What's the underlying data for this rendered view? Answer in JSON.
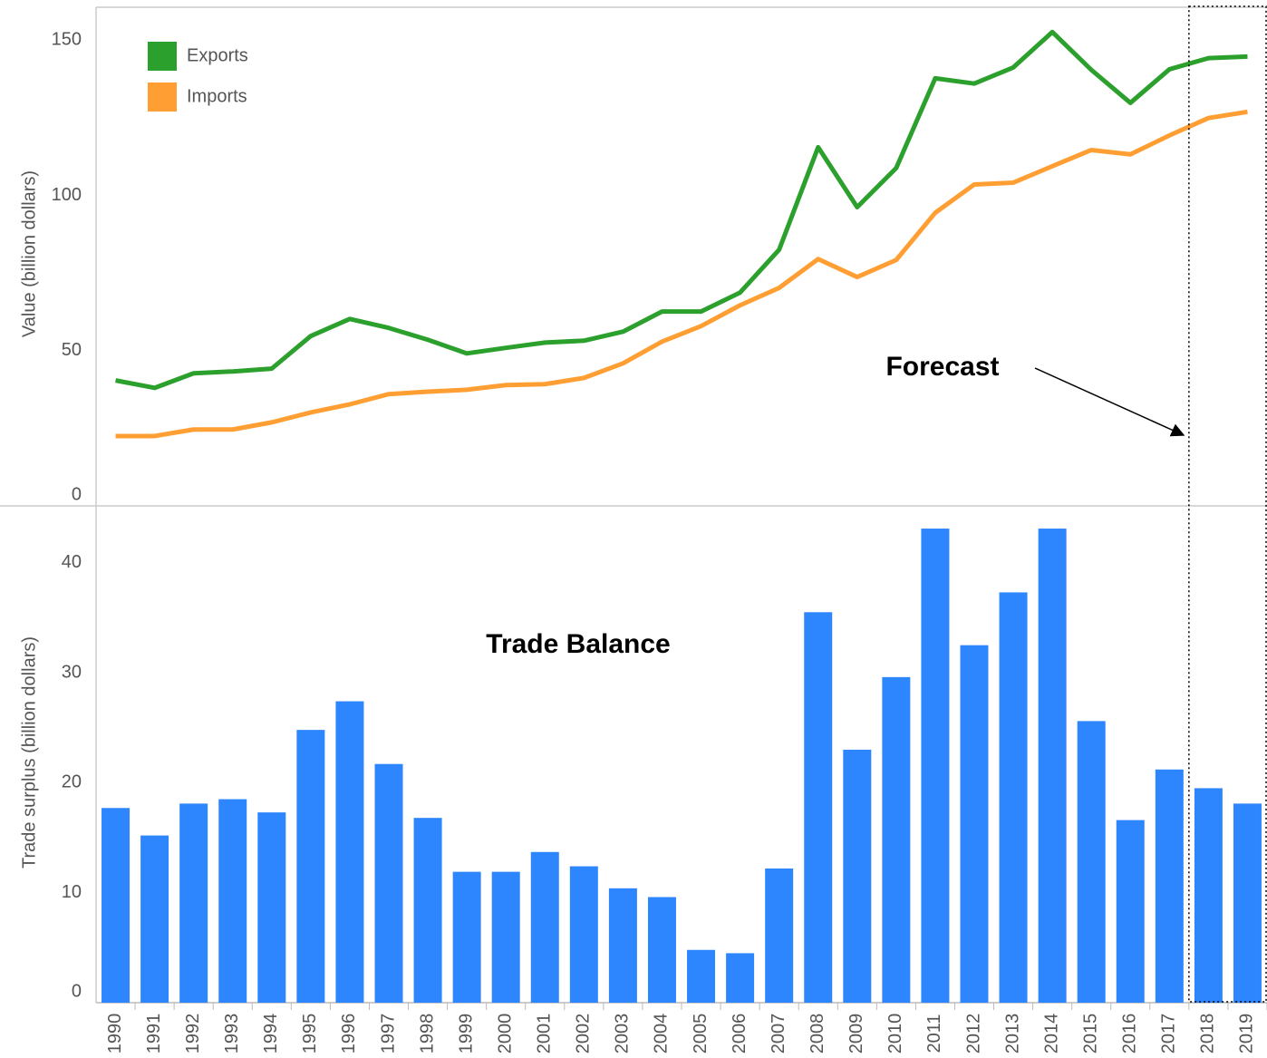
{
  "chart_data": [
    {
      "type": "line",
      "ylabel": "Value (billion dollars)",
      "annotation": "Forecast",
      "ylim": [
        0,
        160
      ],
      "yticks": [
        0,
        50,
        100,
        150
      ],
      "grid": false,
      "legend": "upper left",
      "series": [
        {
          "name": "Exports",
          "color": "#2ca02c",
          "values": [
            40.4,
            38,
            42.7,
            43.3,
            44.2,
            54.7,
            60.2,
            57.3,
            53.5,
            49.1,
            50.9,
            52.6,
            53.2,
            56.1,
            62.6,
            62.6,
            68.7,
            82.5,
            115.5,
            96.2,
            108.8,
            137.7,
            136,
            141.2,
            152.6,
            140.4,
            129.8,
            140.6,
            144.2,
            144.7
          ]
        },
        {
          "name": "Imports",
          "color": "#ff9f33",
          "values": [
            22.5,
            22.5,
            24.6,
            24.6,
            26.9,
            30.1,
            32.7,
            36,
            36.8,
            37.4,
            38.9,
            39.2,
            41.2,
            45.9,
            52.9,
            57.9,
            64.6,
            70.2,
            79.5,
            73.7,
            79.2,
            94.4,
            103.5,
            104.1,
            109.4,
            114.6,
            113.2,
            119.3,
            124.9,
            126.9
          ]
        }
      ]
    },
    {
      "type": "bar",
      "title": "Trade Balance",
      "ylabel": "Trade surplus (billion dollars)",
      "categories": [
        "1990",
        "1991",
        "1992",
        "1993",
        "1994",
        "1995",
        "1996",
        "1997",
        "1998",
        "1999",
        "2000",
        "2001",
        "2002",
        "2003",
        "2004",
        "2005",
        "2006",
        "2007",
        "2008",
        "2009",
        "2010",
        "2011",
        "2012",
        "2013",
        "2014",
        "2015",
        "2016",
        "2017",
        "2018",
        "2019"
      ],
      "values": [
        17.7,
        15.2,
        18.1,
        18.5,
        17.3,
        24.8,
        27.4,
        21.7,
        16.8,
        11.9,
        11.9,
        13.7,
        12.4,
        10.4,
        9.6,
        4.8,
        4.5,
        12.2,
        35.5,
        23,
        29.6,
        43.1,
        32.5,
        37.3,
        43.1,
        25.6,
        16.6,
        21.2,
        19.5,
        18.1
      ],
      "color": "#2e86ff",
      "ylim": [
        0,
        45
      ],
      "yticks": [
        0,
        10,
        20,
        30,
        40
      ],
      "grid": false
    }
  ]
}
